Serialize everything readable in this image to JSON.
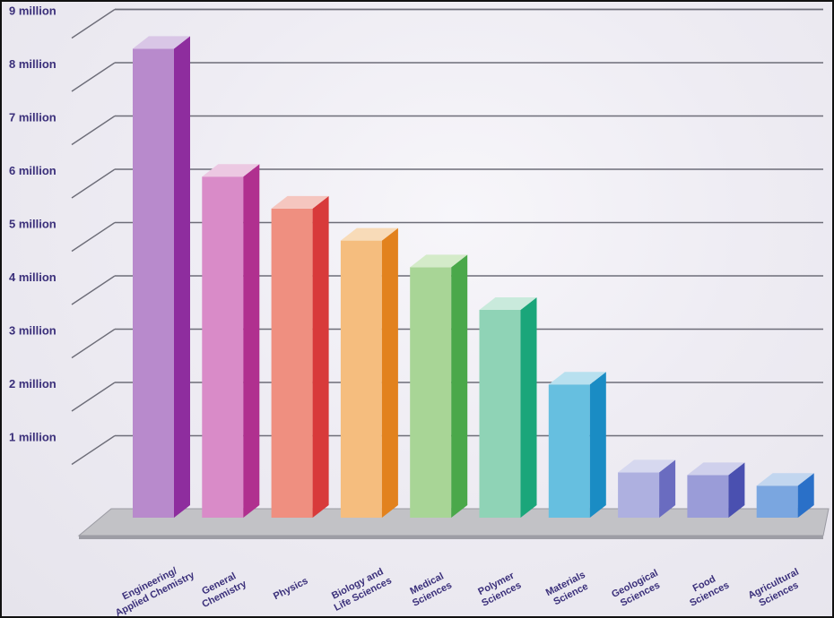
{
  "chart_data": {
    "type": "bar",
    "title": "",
    "xlabel": "",
    "ylabel": "",
    "ylim": [
      0,
      9000000
    ],
    "yticks": [
      {
        "value": 1000000,
        "label": "1 million"
      },
      {
        "value": 2000000,
        "label": "2 million"
      },
      {
        "value": 3000000,
        "label": "3 million"
      },
      {
        "value": 4000000,
        "label": "4 million"
      },
      {
        "value": 5000000,
        "label": "5 million"
      },
      {
        "value": 6000000,
        "label": "6 million"
      },
      {
        "value": 7000000,
        "label": "7 million"
      },
      {
        "value": 8000000,
        "label": "8 million"
      },
      {
        "value": 9000000,
        "label": "9 million"
      }
    ],
    "grid": true,
    "categories": [
      [
        "Engineering/",
        "Applied Chemistry"
      ],
      [
        "General",
        "Chemistry"
      ],
      [
        "Physics"
      ],
      [
        "Biology and",
        "Life Sciences"
      ],
      [
        "Medical",
        "Sciences"
      ],
      [
        "Polymer",
        "Sciences"
      ],
      [
        "Materials",
        "Science"
      ],
      [
        "Geological",
        "Sciences"
      ],
      [
        "Food",
        "Sciences"
      ],
      [
        "Agricultural",
        "Sciences"
      ]
    ],
    "values": [
      8800000,
      6400000,
      5800000,
      5200000,
      4700000,
      3900000,
      2500000,
      850000,
      800000,
      600000
    ],
    "colors": [
      {
        "front": "#b88acc",
        "side": "#8e2d9e",
        "top": "#d9c6e6"
      },
      {
        "front": "#d98bc8",
        "side": "#b0308f",
        "top": "#ecc8e2"
      },
      {
        "front": "#ef8f80",
        "side": "#d83a3a",
        "top": "#f5c6bf"
      },
      {
        "front": "#f5bd7e",
        "side": "#e2821e",
        "top": "#f8dbb8"
      },
      {
        "front": "#a8d596",
        "side": "#4aa84a",
        "top": "#d4ebc9"
      },
      {
        "front": "#8fd3b6",
        "side": "#1aa67a",
        "top": "#c9eadc"
      },
      {
        "front": "#66bfe0",
        "side": "#1a8cc4",
        "top": "#b8e0ef"
      },
      {
        "front": "#aeb0e0",
        "side": "#6a6cc0",
        "top": "#d6d8ef"
      },
      {
        "front": "#9a9cd8",
        "side": "#4a50b0",
        "top": "#cfd0ec"
      },
      {
        "front": "#7aa6e0",
        "side": "#2a70c8",
        "top": "#c2d6ef"
      }
    ]
  }
}
